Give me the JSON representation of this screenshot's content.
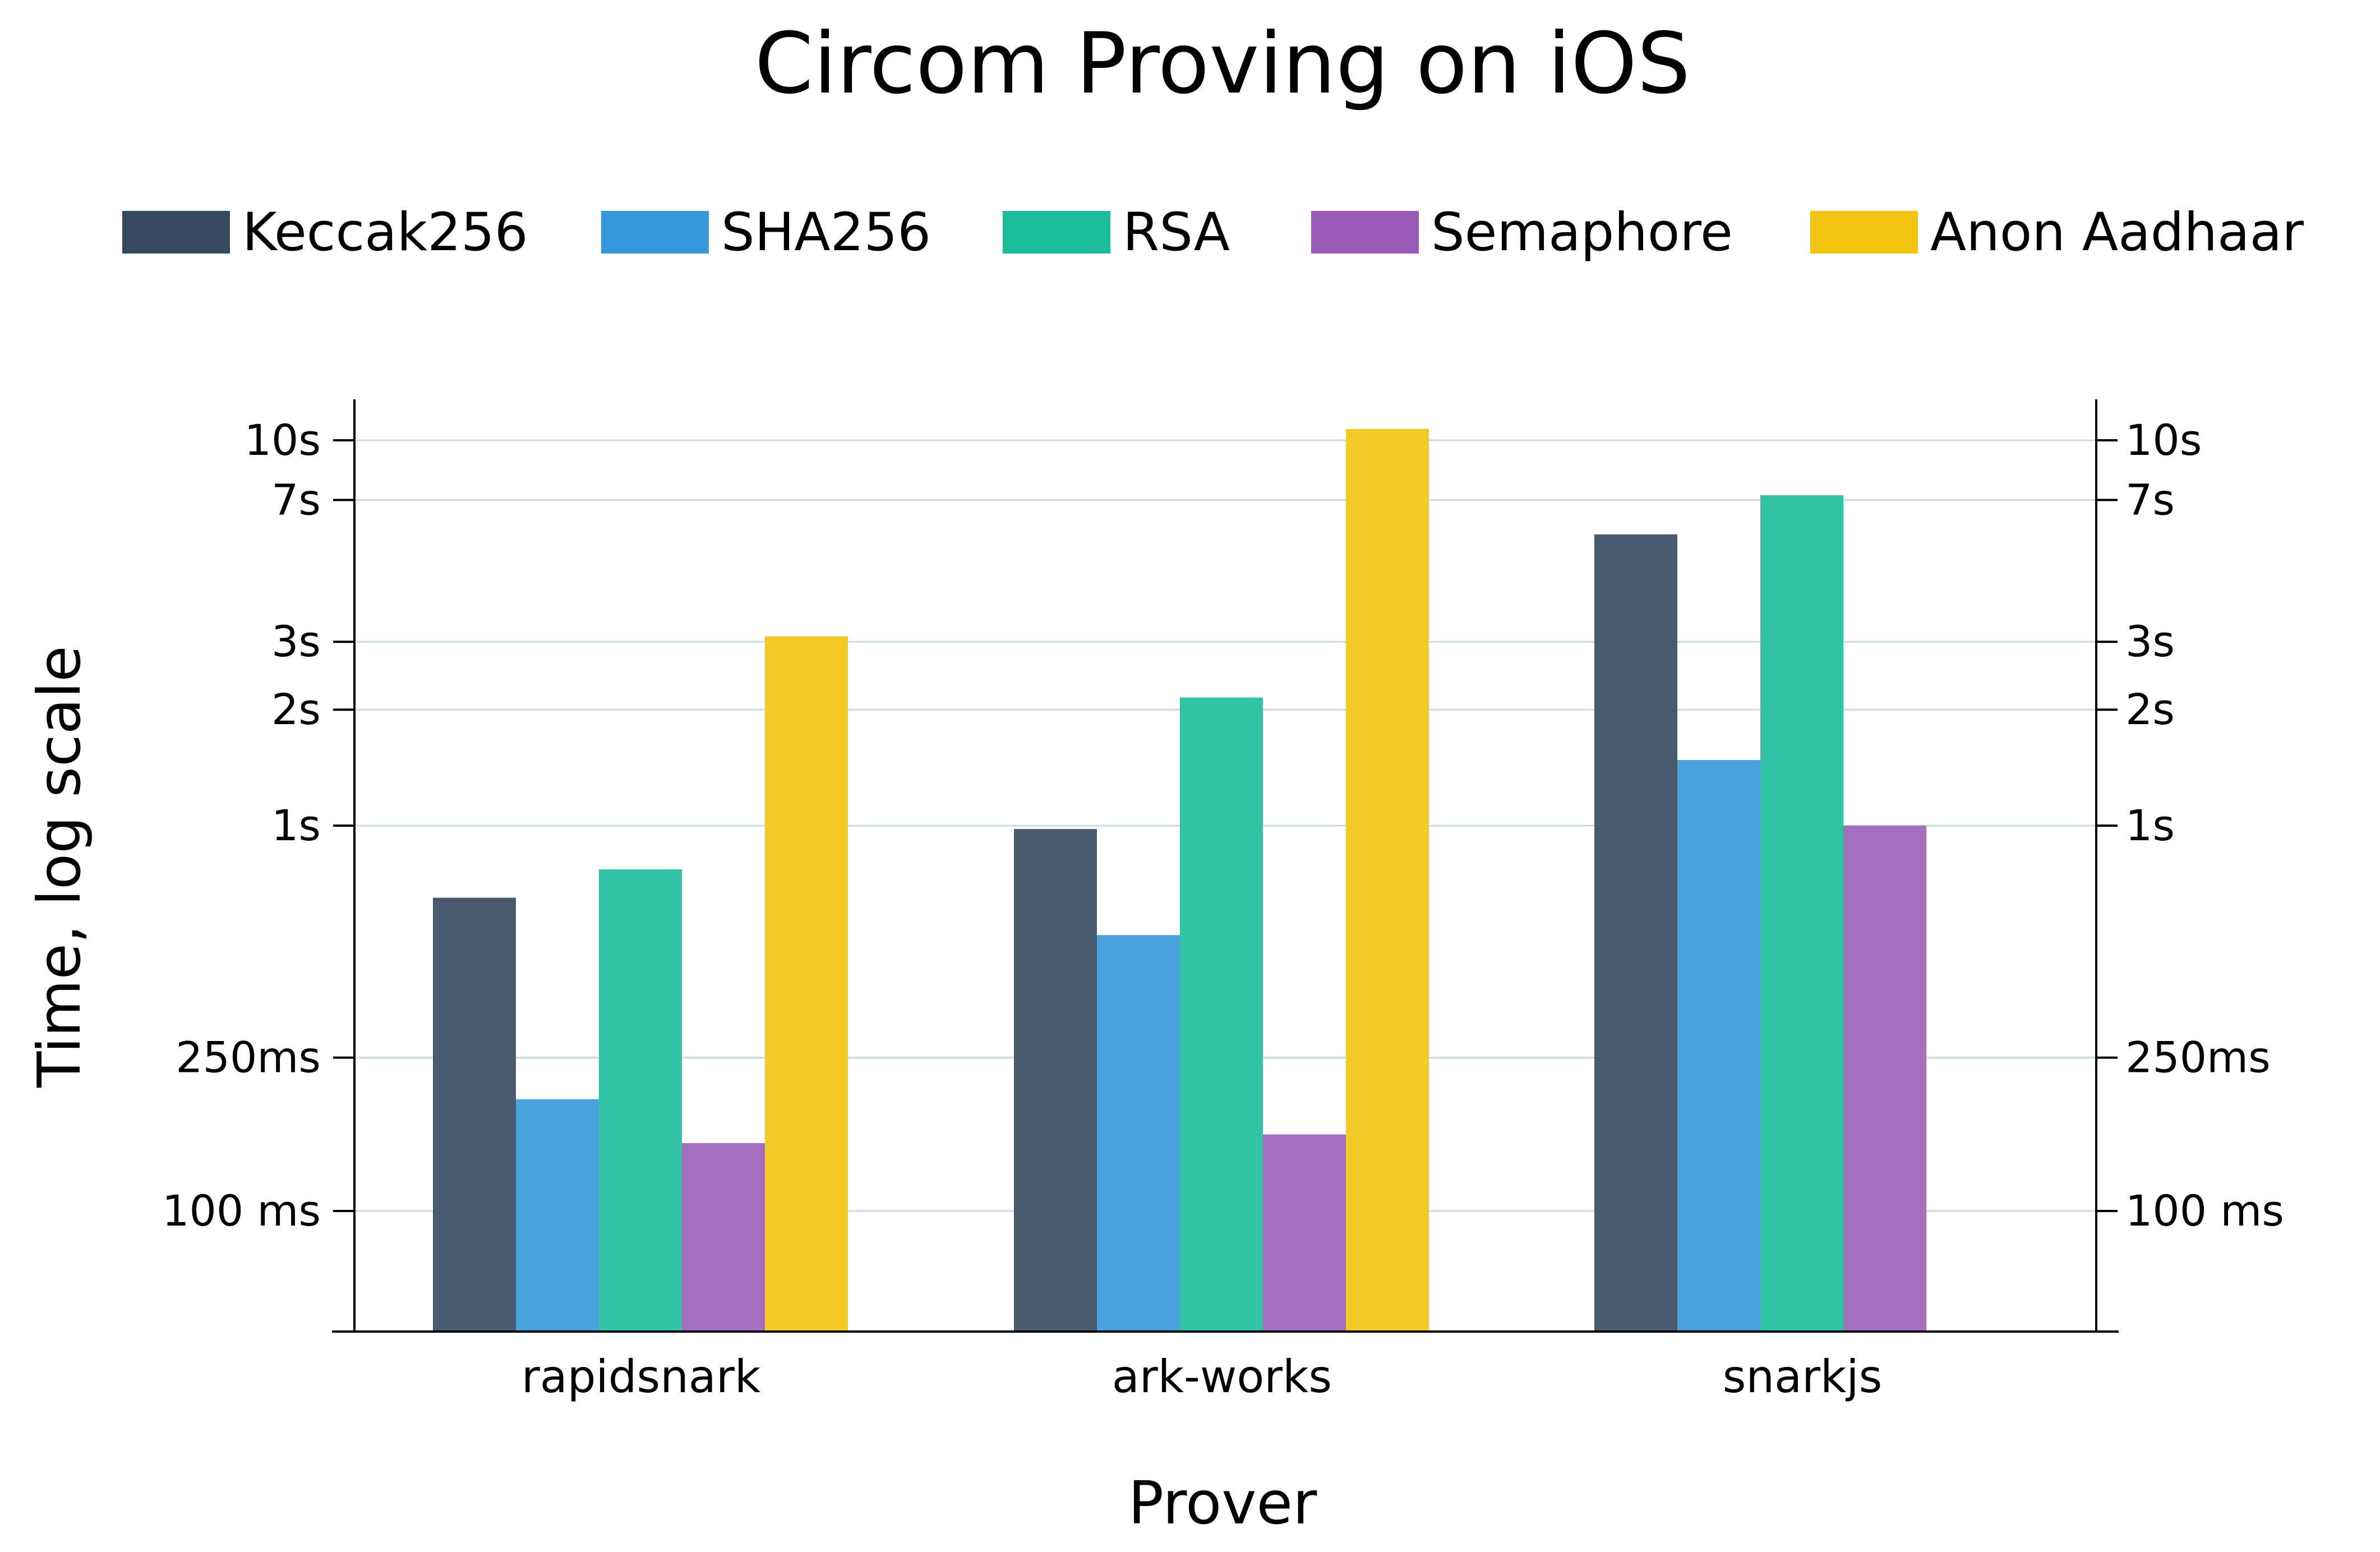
{
  "chart_data": {
    "type": "bar",
    "title": "Circom Proving on iOS",
    "xlabel": "Prover",
    "ylabel": "Time, log scale",
    "y_scale": "log",
    "y_unit": "seconds",
    "ylim": [
      0.055,
      13
    ],
    "y_ticks": [
      {
        "value": 0.1,
        "label": "100 ms"
      },
      {
        "value": 0.25,
        "label": "250ms"
      },
      {
        "value": 1,
        "label": "1s"
      },
      {
        "value": 2,
        "label": "2s"
      },
      {
        "value": 3,
        "label": "3s"
      },
      {
        "value": 7,
        "label": "7s"
      },
      {
        "value": 10,
        "label": "10s"
      }
    ],
    "grid": true,
    "legend_position": "top",
    "categories": [
      "rapidsnark",
      "ark-works",
      "snarkjs"
    ],
    "series": [
      {
        "name": "Keccak256",
        "color": "#34495e",
        "legend_color": "#34495e",
        "bar_color": "#485a6e",
        "values": [
          0.65,
          0.98,
          5.7
        ]
      },
      {
        "name": "SHA256",
        "color": "#3498db",
        "legend_color": "#3498db",
        "bar_color": "#4aa2dd",
        "values": [
          0.195,
          0.52,
          1.48
        ]
      },
      {
        "name": "RSA",
        "color": "#1abc9c",
        "legend_color": "#1abc9c",
        "bar_color": "#32c3a5",
        "values": [
          0.77,
          2.15,
          7.2
        ]
      },
      {
        "name": "Semaphore",
        "color": "#9b59b6",
        "legend_color": "#9b59b6",
        "bar_color": "#a56ebf",
        "values": [
          0.15,
          0.158,
          1.0
        ]
      },
      {
        "name": "Anon Aadhaar",
        "color": "#f1c40f",
        "legend_color": "#f1c40f",
        "bar_color": "#f2c929",
        "values": [
          3.1,
          10.7,
          null
        ]
      }
    ]
  }
}
